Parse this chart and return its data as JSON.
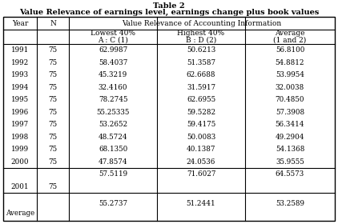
{
  "title1": "Table 2",
  "title2": "Value Relevance of earnings level, earnings change plus book values",
  "col_header1": "Value Relevance of Accounting Information",
  "col_header2a": "Lowest 40%",
  "col_header2b": "Highest 40%",
  "col_header2c": "Average",
  "col_header3a": "A : C (1)",
  "col_header3b": "B : D (2)",
  "col_header3c": "(1 and 2)",
  "rows": [
    {
      "year": "1991",
      "n": "75",
      "low": "62.9987",
      "high": "50.6213",
      "avg": "56.8100"
    },
    {
      "year": "1992",
      "n": "75",
      "low": "58.4037",
      "high": "51.3587",
      "avg": "54.8812"
    },
    {
      "year": "1993",
      "n": "75",
      "low": "45.3219",
      "high": "62.6688",
      "avg": "53.9954"
    },
    {
      "year": "1994",
      "n": "75",
      "low": "32.4160",
      "high": "31.5917",
      "avg": "32.0038"
    },
    {
      "year": "1995",
      "n": "75",
      "low": "78.2745",
      "high": "62.6955",
      "avg": "70.4850"
    },
    {
      "year": "1996",
      "n": "75",
      "low": "55.25335",
      "high": "59.5282",
      "avg": "57.3908"
    },
    {
      "year": "1997",
      "n": "75",
      "low": "53.2652",
      "high": "59.4175",
      "avg": "56.3414"
    },
    {
      "year": "1998",
      "n": "75",
      "low": "48.5724",
      "high": "50.0083",
      "avg": "49.2904"
    },
    {
      "year": "1999",
      "n": "75",
      "low": "68.1350",
      "high": "40.1387",
      "avg": "54.1368"
    },
    {
      "year": "2000",
      "n": "75",
      "low": "47.8574",
      "high": "24.0536",
      "avg": "35.9555"
    }
  ],
  "row_2001_top": {
    "low": "57.5119",
    "high": "71.6027",
    "avg": "64.5573"
  },
  "row_2001": {
    "year": "2001",
    "n": "75"
  },
  "row_avg": {
    "year": "Average",
    "low": "55.2737",
    "high": "51.2441",
    "avg": "53.2589"
  },
  "bg_color": "#ffffff",
  "text_color": "#000000",
  "border_color": "#000000",
  "title_fs": 7.0,
  "header_fs": 6.5,
  "cell_fs": 6.3
}
